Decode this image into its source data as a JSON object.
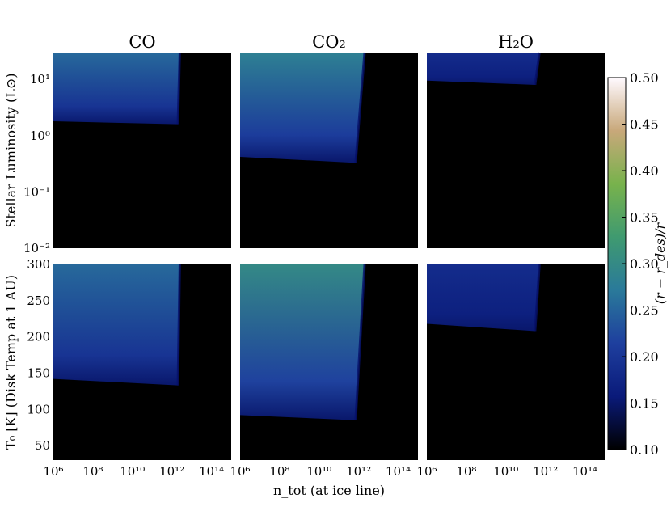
{
  "chart_data": {
    "type": "heatmap",
    "colormap": [
      "#000000",
      "#0a1a7a",
      "#1e3f9e",
      "#2a7a9a",
      "#3f9a70",
      "#78b24c",
      "#c8a87a",
      "#fffaff"
    ],
    "columns": [
      {
        "title": "CO"
      },
      {
        "title": "CO₂"
      },
      {
        "title": "H₂O"
      }
    ],
    "x_axis": {
      "label": "n_tot (at ice line)",
      "scale": "log",
      "range": [
        1000000.0,
        1000000000000000.0
      ],
      "ticks": [
        {
          "value": 1000000.0,
          "label": "10⁶"
        },
        {
          "value": 100000000.0,
          "label": "10⁸"
        },
        {
          "value": 10000000000.0,
          "label": "10¹⁰"
        },
        {
          "value": 1000000000000.0,
          "label": "10¹²"
        },
        {
          "value": 100000000000000.0,
          "label": "10¹⁴"
        }
      ]
    },
    "rows": [
      {
        "ylabel": "Stellar Luminosity (L⊙)",
        "scale": "log",
        "ylim": [
          0.01,
          30
        ],
        "ticks": [
          {
            "value": 0.01,
            "label": "10⁻²"
          },
          {
            "value": 0.1,
            "label": "10⁻¹"
          },
          {
            "value": 1,
            "label": "10⁰"
          },
          {
            "value": 10,
            "label": "10¹"
          }
        ],
        "panels": [
          {
            "species": "CO",
            "region": {
              "y_edge_left": 1.8,
              "y_edge_right": 1.6,
              "x_cut_bottom": 2000000000000.0,
              "x_cut_top": 2500000000000.0
            },
            "value_bottom": 0.1,
            "value_top": 0.22
          },
          {
            "species": "CO₂",
            "region": {
              "y_edge_left": 0.42,
              "y_edge_right": 0.33,
              "x_cut_bottom": 700000000000.0,
              "x_cut_top": 2000000000000.0
            },
            "value_bottom": 0.1,
            "value_top": 0.25
          },
          {
            "species": "H₂O",
            "region": {
              "y_edge_left": 9.5,
              "y_edge_right": 8.0,
              "x_cut_bottom": 300000000000.0,
              "x_cut_top": 500000000000.0
            },
            "value_bottom": 0.1,
            "value_top": 0.14
          }
        ]
      },
      {
        "ylabel": "T₀ [K] (Disk Temp at 1 AU)",
        "scale": "linear",
        "ylim": [
          30,
          300
        ],
        "ticks": [
          {
            "value": 50,
            "label": "50"
          },
          {
            "value": 100,
            "label": "100"
          },
          {
            "value": 150,
            "label": "150"
          },
          {
            "value": 200,
            "label": "200"
          },
          {
            "value": 250,
            "label": "250"
          },
          {
            "value": 300,
            "label": "300"
          }
        ],
        "panels": [
          {
            "species": "CO",
            "region": {
              "y_edge_left": 142,
              "y_edge_right": 133,
              "x_cut_bottom": 2000000000000.0,
              "x_cut_top": 2500000000000.0
            },
            "value_bottom": 0.1,
            "value_top": 0.22
          },
          {
            "species": "CO₂",
            "region": {
              "y_edge_left": 92,
              "y_edge_right": 85,
              "x_cut_bottom": 700000000000.0,
              "x_cut_top": 2000000000000.0
            },
            "value_bottom": 0.1,
            "value_top": 0.27
          },
          {
            "species": "H₂O",
            "region": {
              "y_edge_left": 218,
              "y_edge_right": 208,
              "x_cut_bottom": 300000000000.0,
              "x_cut_top": 500000000000.0
            },
            "value_bottom": 0.1,
            "value_top": 0.14
          }
        ]
      }
    ],
    "colorbar": {
      "label": "(r − r_des)/r",
      "range": [
        0.1,
        0.5
      ],
      "ticks": [
        {
          "value": 0.5,
          "label": "0.50"
        },
        {
          "value": 0.45,
          "label": "0.45"
        },
        {
          "value": 0.4,
          "label": "0.40"
        },
        {
          "value": 0.35,
          "label": "0.35"
        },
        {
          "value": 0.3,
          "label": "0.30"
        },
        {
          "value": 0.25,
          "label": "0.25"
        },
        {
          "value": 0.2,
          "label": "0.20"
        },
        {
          "value": 0.15,
          "label": "0.15"
        },
        {
          "value": 0.1,
          "label": "0.10"
        }
      ]
    }
  }
}
